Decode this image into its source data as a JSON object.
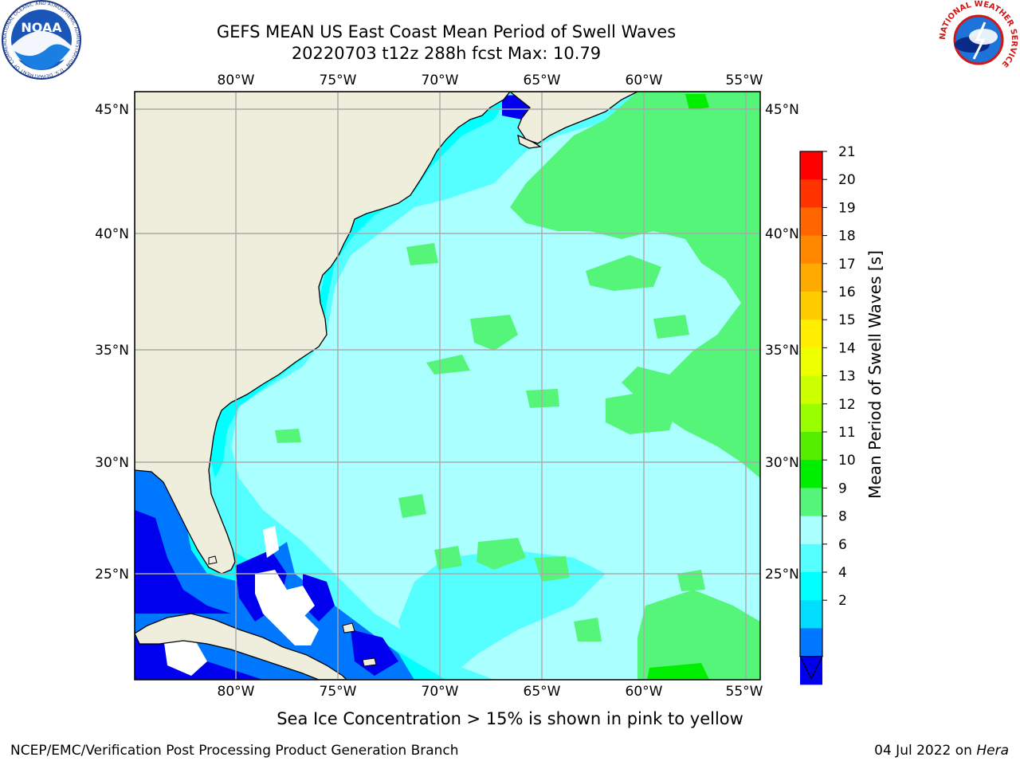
{
  "header": {
    "title_line1": "GEFS MEAN US East Coast Mean Period of Swell Waves",
    "title_line2": "20220703 t12z 288h fcst   Max: 10.79"
  },
  "logos": {
    "left": {
      "name": "noaa-logo",
      "text": "NOAA",
      "ring_text": "NATIONAL OCEANIC AND ATMOSPHERIC ADMINISTRATION · U.S. DEPARTMENT OF COMMERCE"
    },
    "right": {
      "name": "nws-logo",
      "ring_text": "NATIONAL WEATHER SERVICE"
    }
  },
  "map": {
    "lon_labels": [
      "80°W",
      "75°W",
      "70°W",
      "65°W",
      "60°W",
      "55°W"
    ],
    "lat_labels": [
      "45°N",
      "40°N",
      "35°N",
      "30°N",
      "25°N"
    ],
    "grid": true,
    "colors": {
      "land": "#efeedd",
      "coastline": "#000000",
      "grid": "#aaaaaa",
      "no_data": "#ffffff"
    }
  },
  "colorbar": {
    "title": "Mean Period of Swell Waves [s]",
    "tick_labels": [
      "21",
      "20",
      "19",
      "18",
      "17",
      "16",
      "15",
      "14",
      "13",
      "12",
      "11",
      "10",
      "9",
      "8",
      "6",
      "4",
      "2"
    ],
    "colors_top_to_bottom": [
      "#ff0000",
      "#ff3300",
      "#ff6600",
      "#ff8800",
      "#ffaa00",
      "#ffcc00",
      "#ffee00",
      "#eeff00",
      "#ccff00",
      "#99ff00",
      "#55ee00",
      "#00ee00",
      "#55f57a",
      "#aaffff",
      "#55ffff",
      "#00ffff",
      "#00ddff",
      "#0077ff",
      "#0000ee"
    ],
    "extend": "lower"
  },
  "footer": {
    "note": "Sea Ice Concentration > 15% is shown in pink to yellow",
    "left": "NCEP/EMC/Verification Post Processing Product Generation Branch",
    "date": "04 Jul 2022 on",
    "system": "Hera"
  }
}
